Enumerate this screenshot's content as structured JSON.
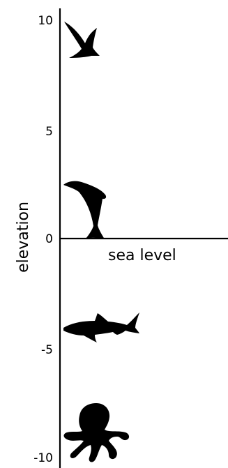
{
  "diagram": {
    "axis_title": "elevation",
    "ticks": [
      "10",
      "5",
      "0",
      "-5",
      "-10"
    ],
    "sea_level_label": "sea level",
    "animals": [
      {
        "name": "bird",
        "icon": "bird-icon"
      },
      {
        "name": "dolphin",
        "icon": "dolphin-icon"
      },
      {
        "name": "shark",
        "icon": "shark-icon"
      },
      {
        "name": "octopus",
        "icon": "octopus-icon"
      }
    ]
  }
}
